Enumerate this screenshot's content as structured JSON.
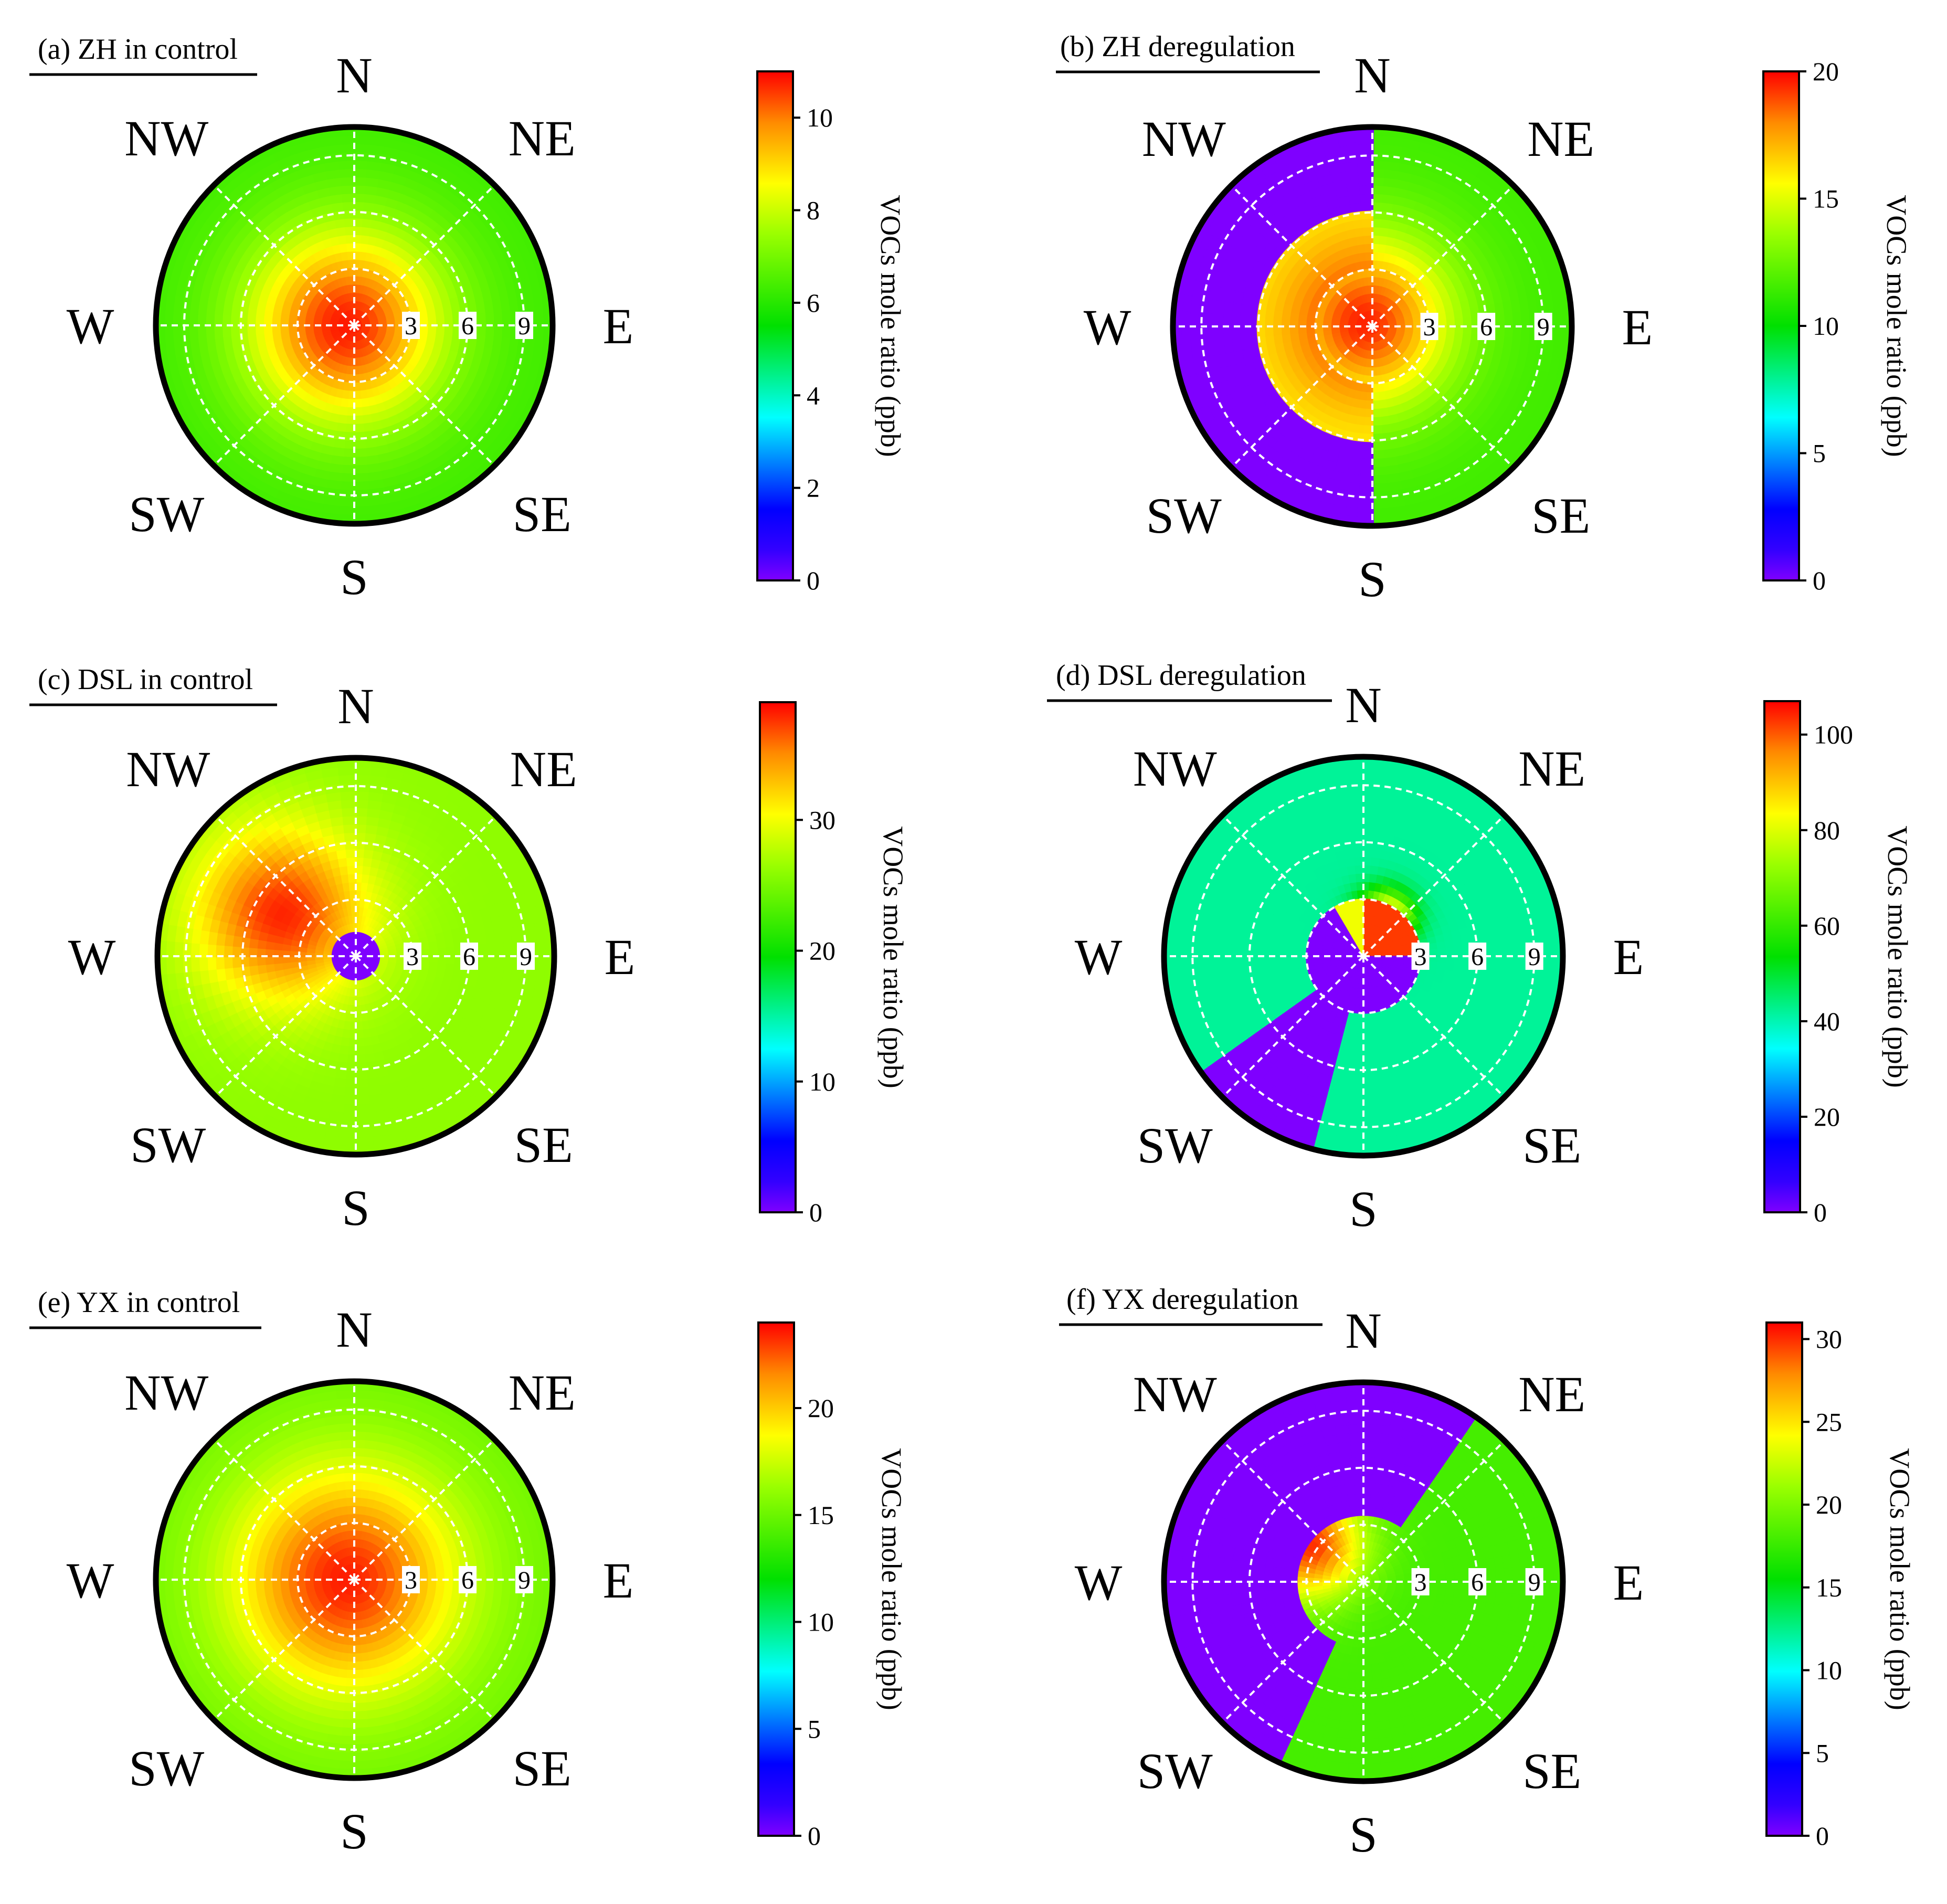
{
  "chart_data": [
    {
      "type": "polar-heatmap",
      "panel_title": "(a) ZH in control",
      "directions": [
        "N",
        "NE",
        "E",
        "SE",
        "S",
        "SW",
        "W",
        "NW"
      ],
      "radial_ticks": [
        3,
        6,
        9
      ],
      "radial_max": 10.5,
      "colorbar": {
        "label": "VOCs mole ratio (ppb)",
        "min": 0,
        "max": 11,
        "ticks": [
          0,
          2,
          4,
          6,
          8,
          10
        ]
      },
      "field": {
        "background": 6.3,
        "hotspot": {
          "value": 10.8,
          "bearing_deg": 270,
          "radius": 0.5,
          "spread": 3.6
        },
        "zero_region": null
      }
    },
    {
      "type": "polar-heatmap",
      "panel_title": "(b) ZH deregulation",
      "directions": [
        "N",
        "NE",
        "E",
        "SE",
        "S",
        "SW",
        "W",
        "NW"
      ],
      "radial_ticks": [
        3,
        6,
        9
      ],
      "radial_max": 10.5,
      "colorbar": {
        "label": "VOCs mole ratio (ppb)",
        "min": 0,
        "max": 20,
        "ticks": [
          0,
          5,
          10,
          15,
          20
        ]
      },
      "field": {
        "background": 11.5,
        "hotspot": {
          "value": 19.5,
          "bearing_deg": 300,
          "radius": 0.5,
          "spread": 3.2
        },
        "ring": {
          "value": 15.5,
          "inner": 3,
          "outer": 6,
          "from_deg": 180,
          "to_deg": 360
        },
        "zero_region": {
          "from_deg": 178,
          "to_deg": 360,
          "min_r": 6.3
        }
      }
    },
    {
      "type": "polar-heatmap",
      "panel_title": "(c) DSL in control",
      "directions": [
        "N",
        "NE",
        "E",
        "SE",
        "S",
        "SW",
        "W",
        "NW"
      ],
      "radial_ticks": [
        3,
        6,
        9
      ],
      "radial_max": 10.5,
      "colorbar": {
        "label": "VOCs mole ratio (ppb)",
        "min": 0,
        "max": 39,
        "ticks": [
          0,
          10,
          20,
          30
        ]
      },
      "field": {
        "background": 26,
        "hotspot": {
          "value": 38,
          "bearing_deg": 300,
          "radius": 4.5,
          "spread": 3.2
        },
        "zero_region": {
          "center": true,
          "max_r": 1.1
        }
      }
    },
    {
      "type": "polar-heatmap",
      "panel_title": "(d) DSL deregulation",
      "directions": [
        "N",
        "NE",
        "E",
        "SE",
        "S",
        "SW",
        "W",
        "NW"
      ],
      "radial_ticks": [
        3,
        6,
        9
      ],
      "radial_max": 10.5,
      "colorbar": {
        "label": "VOCs mole ratio (ppb)",
        "min": 0,
        "max": 107,
        "ticks": [
          0,
          20,
          40,
          60,
          80,
          100
        ]
      },
      "field": {
        "background": 42,
        "hotspot": {
          "value": 104,
          "bearing_deg": 30,
          "radius": 2.2,
          "spread": 1.0
        },
        "inner_core": {
          "value": 82,
          "max_r": 3
        },
        "zero_region": {
          "band_deg": [
            195,
            235
          ],
          "center": true,
          "max_r_center": 3
        }
      }
    },
    {
      "type": "polar-heatmap",
      "panel_title": "(e) YX in control",
      "directions": [
        "N",
        "NE",
        "E",
        "SE",
        "S",
        "SW",
        "W",
        "NW"
      ],
      "radial_ticks": [
        3,
        6,
        9
      ],
      "radial_max": 10.5,
      "colorbar": {
        "label": "VOCs mole ratio (ppb)",
        "min": 0,
        "max": 24,
        "ticks": [
          0,
          5,
          10,
          15,
          20
        ]
      },
      "field": {
        "background": 15,
        "hotspot": {
          "value": 23.5,
          "bearing_deg": 270,
          "radius": 0.5,
          "spread": 4.2
        },
        "zero_region": null
      }
    },
    {
      "type": "polar-heatmap",
      "panel_title": "(f) YX deregulation",
      "directions": [
        "N",
        "NE",
        "E",
        "SE",
        "S",
        "SW",
        "W",
        "NW"
      ],
      "radial_ticks": [
        3,
        6,
        9
      ],
      "radial_max": 10.5,
      "colorbar": {
        "label": "VOCs mole ratio (ppb)",
        "min": 0,
        "max": 31,
        "ticks": [
          0,
          5,
          10,
          15,
          20,
          25,
          30
        ]
      },
      "field": {
        "background": 18,
        "hotspot": {
          "value": 30,
          "bearing_deg": 305,
          "radius": 3.5,
          "spread": 2.0
        },
        "zero_region": {
          "from_deg": 205,
          "to_deg": 395,
          "min_r": 3.6
        }
      }
    }
  ]
}
